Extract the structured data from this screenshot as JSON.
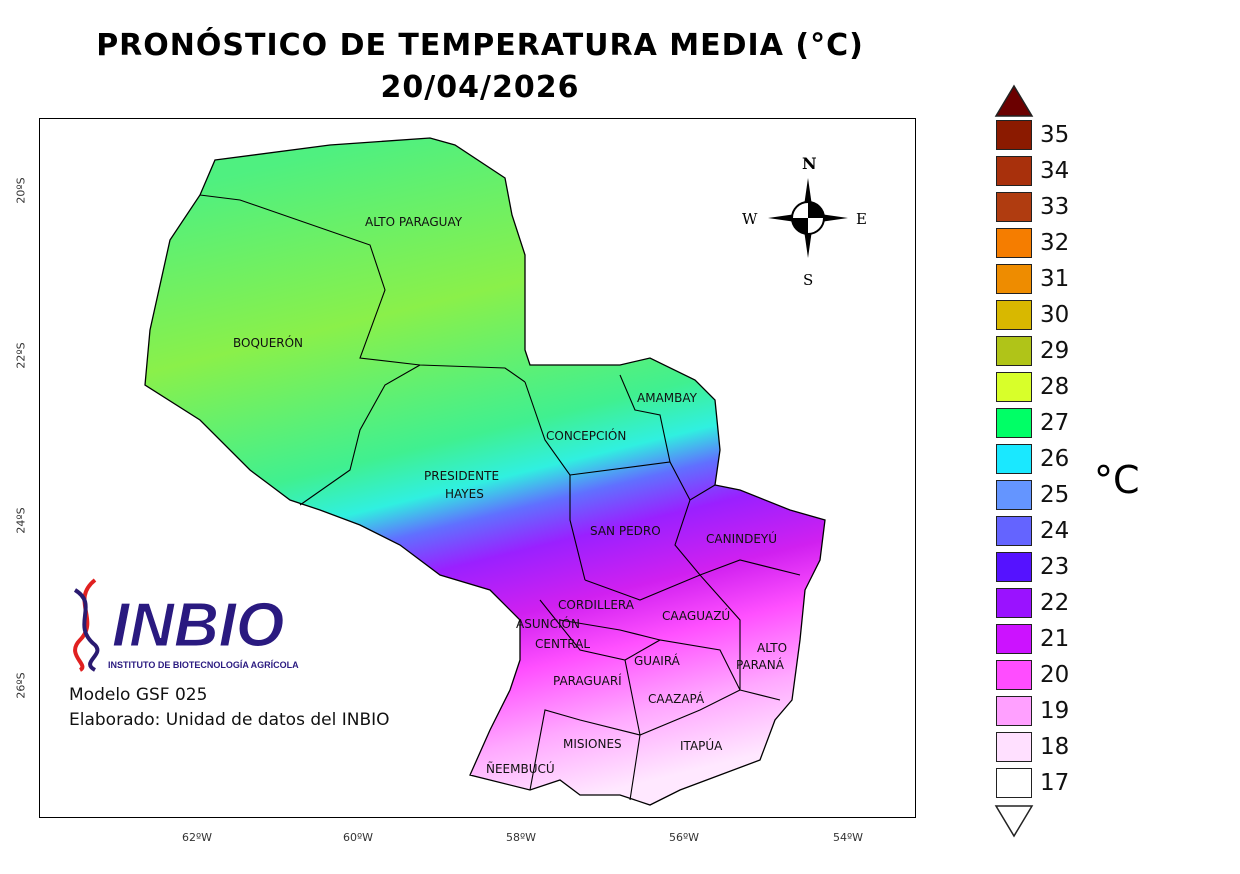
{
  "title": "PRONÓSTICO DE TEMPERATURA MEDIA (°C)",
  "date": "20/04/2026",
  "latitude_labels": [
    "20ºS",
    "22ºS",
    "24ºS",
    "26ºS"
  ],
  "longitude_labels": [
    "62ºW",
    "60ºW",
    "58ºW",
    "56ºW",
    "54ºW"
  ],
  "departments": [
    "ALTO PARAGUAY",
    "BOQUERÓN",
    "PRESIDENTE",
    "HAYES",
    "CONCEPCIÓN",
    "AMAMBAY",
    "SAN PEDRO",
    "CANINDEYÚ",
    "CORDILLERA",
    "ASUNCIÓN",
    "CENTRAL",
    "CAAGUAZÚ",
    "ALTO",
    "PARANÁ",
    "GUAIRÁ",
    "PARAGUARÍ",
    "CAAZAPÁ",
    "MISIONES",
    "ITAPÚA",
    "ÑEEMBUCÚ"
  ],
  "compass": {
    "n": "N",
    "s": "S",
    "e": "E",
    "w": "W"
  },
  "logo": {
    "name": "INBIO",
    "subtitle": "INSTITUTO DE BIOTECNOLOGÍA AGRÍCOLA"
  },
  "model": "Modelo GSF 025",
  "credit": "Elaborado: Unidad de datos del INBIO",
  "legend": {
    "unit": "°C",
    "over_color": "#6b0000",
    "under_color": "#ffffff",
    "levels": [
      {
        "value": "35",
        "color": "#8b1a00"
      },
      {
        "value": "34",
        "color": "#a8300c"
      },
      {
        "value": "33",
        "color": "#b03c10"
      },
      {
        "value": "32",
        "color": "#f57d00"
      },
      {
        "value": "31",
        "color": "#ee8c00"
      },
      {
        "value": "30",
        "color": "#d8b800"
      },
      {
        "value": "29",
        "color": "#b0c418"
      },
      {
        "value": "28",
        "color": "#d8ff2a"
      },
      {
        "value": "27",
        "color": "#00ff66"
      },
      {
        "value": "26",
        "color": "#1ae8ff"
      },
      {
        "value": "25",
        "color": "#6495ff"
      },
      {
        "value": "24",
        "color": "#6464ff"
      },
      {
        "value": "23",
        "color": "#5512ff"
      },
      {
        "value": "22",
        "color": "#9a12ff"
      },
      {
        "value": "21",
        "color": "#cc12ff"
      },
      {
        "value": "20",
        "color": "#ff4dff"
      },
      {
        "value": "19",
        "color": "#ffa0ff"
      },
      {
        "value": "18",
        "color": "#ffe0ff"
      },
      {
        "value": "17",
        "color": "#ffffff"
      }
    ]
  }
}
